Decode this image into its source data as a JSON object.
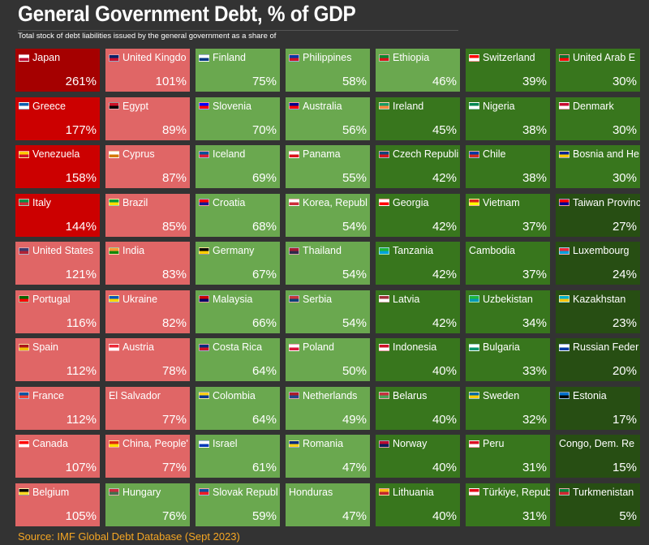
{
  "header": {
    "title": "General Government Debt, % of GDP",
    "subtitle": "Total stock of debt liabilities issued by the general government as a share of"
  },
  "footer": {
    "source": "Source: IMF Global Debt Database (Sept 2023)"
  },
  "colors": {
    "dark_red": "#a50000",
    "red": "#cc0000",
    "light_red": "#e06666",
    "light_green": "#6aa84f",
    "green": "#38761d",
    "dark_green": "#274e13",
    "text_on_dark": "#ffffff",
    "text_on_light": "#000000",
    "source_text": "#f5a623"
  },
  "chart_data": {
    "type": "heatmap",
    "title": "General Government Debt, % of GDP",
    "subtitle": "Total stock of debt liabilities issued by the general government as a share of",
    "unit": "%",
    "columns": [
      [
        {
          "country": "Japan",
          "value": 261,
          "label": "261%",
          "color": "#a50000",
          "flag": [
            "#ffffff",
            "#bc002d"
          ]
        },
        {
          "country": "Greece",
          "value": 177,
          "label": "177%",
          "color": "#cc0000",
          "flag": [
            "#0d5eaf",
            "#ffffff"
          ]
        },
        {
          "country": "Venezuela",
          "value": 158,
          "label": "158%",
          "color": "#cc0000",
          "flag": [
            "#ffcc00",
            "#cf142b"
          ]
        },
        {
          "country": "Italy",
          "value": 144,
          "label": "144%",
          "color": "#cc0000",
          "flag": [
            "#009246",
            "#ce2b37"
          ]
        },
        {
          "country": "United States",
          "value": 121,
          "label": "121%",
          "color": "#e06666",
          "flag": [
            "#3c3b6e",
            "#b22234"
          ]
        },
        {
          "country": "Portugal",
          "value": 116,
          "label": "116%",
          "color": "#e06666",
          "flag": [
            "#006600",
            "#ff0000"
          ]
        },
        {
          "country": "Spain",
          "value": 112,
          "label": "112%",
          "color": "#e06666",
          "flag": [
            "#aa151b",
            "#f1bf00"
          ]
        },
        {
          "country": "France",
          "value": 112,
          "label": "112%",
          "color": "#e06666",
          "flag": [
            "#0055a4",
            "#ef4135"
          ]
        },
        {
          "country": "Canada",
          "value": 107,
          "label": "107%",
          "color": "#e06666",
          "flag": [
            "#ff0000",
            "#ffffff"
          ]
        },
        {
          "country": "Belgium",
          "value": 105,
          "label": "105%",
          "color": "#e06666",
          "flag": [
            "#000000",
            "#fdda24"
          ]
        }
      ],
      [
        {
          "country": "United Kingdo",
          "value": 101,
          "label": "101%",
          "color": "#e06666",
          "flag": [
            "#012169",
            "#c8102e"
          ]
        },
        {
          "country": "Egypt",
          "value": 89,
          "label": "89%",
          "color": "#e06666",
          "flag": [
            "#ce1126",
            "#000000"
          ]
        },
        {
          "country": "Cyprus",
          "value": 87,
          "label": "87%",
          "color": "#e06666",
          "flag": [
            "#ffffff",
            "#d57800"
          ]
        },
        {
          "country": "Brazil",
          "value": 85,
          "label": "85%",
          "color": "#e06666",
          "flag": [
            "#009c3b",
            "#ffdf00"
          ]
        },
        {
          "country": "India",
          "value": 83,
          "label": "83%",
          "color": "#e06666",
          "flag": [
            "#ff9933",
            "#138808"
          ]
        },
        {
          "country": "Ukraine",
          "value": 82,
          "label": "82%",
          "color": "#e06666",
          "flag": [
            "#0057b7",
            "#ffd700"
          ]
        },
        {
          "country": "Austria",
          "value": 78,
          "label": "78%",
          "color": "#e06666",
          "flag": [
            "#ed2939",
            "#ffffff"
          ]
        },
        {
          "country": "El Salvador",
          "value": 77,
          "label": "77%",
          "color": "#e06666",
          "flag": null
        },
        {
          "country": "China, People'",
          "value": 77,
          "label": "77%",
          "color": "#e06666",
          "flag": [
            "#de2910",
            "#ffde00"
          ]
        },
        {
          "country": "Hungary",
          "value": 76,
          "label": "76%",
          "color": "#6aa84f",
          "flag": [
            "#cd2a3e",
            "#436f4d"
          ]
        }
      ],
      [
        {
          "country": "Finland",
          "value": 75,
          "label": "75%",
          "color": "#6aa84f",
          "flag": [
            "#ffffff",
            "#003580"
          ]
        },
        {
          "country": "Slovenia",
          "value": 70,
          "label": "70%",
          "color": "#6aa84f",
          "flag": [
            "#0000ff",
            "#ff0000"
          ]
        },
        {
          "country": "Iceland",
          "value": 69,
          "label": "69%",
          "color": "#6aa84f",
          "flag": [
            "#02529c",
            "#dc1e35"
          ]
        },
        {
          "country": "Croatia",
          "value": 68,
          "label": "68%",
          "color": "#6aa84f",
          "flag": [
            "#ff0000",
            "#171796"
          ]
        },
        {
          "country": "Germany",
          "value": 67,
          "label": "67%",
          "color": "#6aa84f",
          "flag": [
            "#000000",
            "#ffce00"
          ]
        },
        {
          "country": "Malaysia",
          "value": 66,
          "label": "66%",
          "color": "#6aa84f",
          "flag": [
            "#cc0001",
            "#010066"
          ]
        },
        {
          "country": "Costa Rica",
          "value": 64,
          "label": "64%",
          "color": "#6aa84f",
          "flag": [
            "#002b7f",
            "#ce1126"
          ]
        },
        {
          "country": "Colombia",
          "value": 64,
          "label": "64%",
          "color": "#6aa84f",
          "flag": [
            "#fcd116",
            "#003893"
          ]
        },
        {
          "country": "Israel",
          "value": 61,
          "label": "61%",
          "color": "#6aa84f",
          "flag": [
            "#ffffff",
            "#0038b8"
          ]
        },
        {
          "country": "Slovak Republ",
          "value": 59,
          "label": "59%",
          "color": "#6aa84f",
          "flag": [
            "#0b4ea2",
            "#ee1c25"
          ]
        }
      ],
      [
        {
          "country": "Philippines",
          "value": 58,
          "label": "58%",
          "color": "#6aa84f",
          "flag": [
            "#0038a8",
            "#ce1126"
          ]
        },
        {
          "country": "Australia",
          "value": 56,
          "label": "56%",
          "color": "#6aa84f",
          "flag": [
            "#00008b",
            "#ff0000"
          ]
        },
        {
          "country": "Panama",
          "value": 55,
          "label": "55%",
          "color": "#6aa84f",
          "flag": [
            "#ffffff",
            "#da121a"
          ]
        },
        {
          "country": "Korea, Republ",
          "value": 54,
          "label": "54%",
          "color": "#6aa84f",
          "flag": [
            "#ffffff",
            "#cd2e3a"
          ]
        },
        {
          "country": "Thailand",
          "value": 54,
          "label": "54%",
          "color": "#6aa84f",
          "flag": [
            "#a51931",
            "#2d2a4a"
          ]
        },
        {
          "country": "Serbia",
          "value": 54,
          "label": "54%",
          "color": "#6aa84f",
          "flag": [
            "#c6363c",
            "#0c4076"
          ]
        },
        {
          "country": "Poland",
          "value": 50,
          "label": "50%",
          "color": "#6aa84f",
          "flag": [
            "#ffffff",
            "#dc143c"
          ]
        },
        {
          "country": "Netherlands",
          "value": 49,
          "label": "49%",
          "color": "#6aa84f",
          "flag": [
            "#ae1c28",
            "#21468b"
          ]
        },
        {
          "country": "Romania",
          "value": 47,
          "label": "47%",
          "color": "#6aa84f",
          "flag": [
            "#002b7f",
            "#fcd116"
          ]
        },
        {
          "country": "Honduras",
          "value": 47,
          "label": "47%",
          "color": "#6aa84f",
          "flag": null
        }
      ],
      [
        {
          "country": "Ethiopia",
          "value": 46,
          "label": "46%",
          "color": "#6aa84f",
          "flag": [
            "#078930",
            "#da121a"
          ]
        },
        {
          "country": "Ireland",
          "value": 45,
          "label": "45%",
          "color": "#38761d",
          "flag": [
            "#169b62",
            "#ff883e"
          ]
        },
        {
          "country": "Czech Republi",
          "value": 42,
          "label": "42%",
          "color": "#38761d",
          "flag": [
            "#11457e",
            "#d7141a"
          ]
        },
        {
          "country": "Georgia",
          "value": 42,
          "label": "42%",
          "color": "#38761d",
          "flag": [
            "#ffffff",
            "#ff0000"
          ]
        },
        {
          "country": "Tanzania",
          "value": 42,
          "label": "42%",
          "color": "#38761d",
          "flag": [
            "#1eb53a",
            "#00a3dd"
          ]
        },
        {
          "country": "Latvia",
          "value": 42,
          "label": "42%",
          "color": "#38761d",
          "flag": [
            "#9e3039",
            "#ffffff"
          ]
        },
        {
          "country": "Indonesia",
          "value": 40,
          "label": "40%",
          "color": "#38761d",
          "flag": [
            "#ce1126",
            "#ffffff"
          ]
        },
        {
          "country": "Belarus",
          "value": 40,
          "label": "40%",
          "color": "#38761d",
          "flag": [
            "#c8313e",
            "#4aa657"
          ]
        },
        {
          "country": "Norway",
          "value": 40,
          "label": "40%",
          "color": "#38761d",
          "flag": [
            "#ba0c2f",
            "#00205b"
          ]
        },
        {
          "country": "Lithuania",
          "value": 40,
          "label": "40%",
          "color": "#38761d",
          "flag": [
            "#fdb913",
            "#c1272d"
          ]
        }
      ],
      [
        {
          "country": "Switzerland",
          "value": 39,
          "label": "39%",
          "color": "#38761d",
          "flag": [
            "#ff0000",
            "#ffffff"
          ]
        },
        {
          "country": "Nigeria",
          "value": 38,
          "label": "38%",
          "color": "#38761d",
          "flag": [
            "#008751",
            "#ffffff"
          ]
        },
        {
          "country": "Chile",
          "value": 38,
          "label": "38%",
          "color": "#38761d",
          "flag": [
            "#0039a6",
            "#d52b1e"
          ]
        },
        {
          "country": "Vietnam",
          "value": 37,
          "label": "37%",
          "color": "#38761d",
          "flag": [
            "#da251d",
            "#ffff00"
          ]
        },
        {
          "country": "Cambodia",
          "value": 37,
          "label": "37%",
          "color": "#38761d",
          "flag": null
        },
        {
          "country": "Uzbekistan",
          "value": 34,
          "label": "34%",
          "color": "#38761d",
          "flag": [
            "#1eb53a",
            "#0099b5"
          ]
        },
        {
          "country": "Bulgaria",
          "value": 33,
          "label": "33%",
          "color": "#38761d",
          "flag": [
            "#ffffff",
            "#00966e"
          ]
        },
        {
          "country": "Sweden",
          "value": 32,
          "label": "32%",
          "color": "#38761d",
          "flag": [
            "#006aa7",
            "#fecc00"
          ]
        },
        {
          "country": "Peru",
          "value": 31,
          "label": "31%",
          "color": "#38761d",
          "flag": [
            "#d91023",
            "#ffffff"
          ]
        },
        {
          "country": "Türkiye, Repub",
          "value": 31,
          "label": "31%",
          "color": "#38761d",
          "flag": [
            "#e30a17",
            "#ffffff"
          ]
        }
      ],
      [
        {
          "country": "United Arab E",
          "value": 30,
          "label": "30%",
          "color": "#38761d",
          "flag": [
            "#00732f",
            "#ff0000"
          ]
        },
        {
          "country": "Denmark",
          "value": 30,
          "label": "30%",
          "color": "#38761d",
          "flag": [
            "#c60c30",
            "#ffffff"
          ]
        },
        {
          "country": "Bosnia and He",
          "value": 30,
          "label": "30%",
          "color": "#38761d",
          "flag": [
            "#002395",
            "#fecb00"
          ]
        },
        {
          "country": "Taiwan Provinc",
          "value": 27,
          "label": "27%",
          "color": "#274e13",
          "flag": [
            "#fe0000",
            "#000095"
          ]
        },
        {
          "country": "Luxembourg",
          "value": 24,
          "label": "24%",
          "color": "#274e13",
          "flag": [
            "#ed2939",
            "#00a1de"
          ]
        },
        {
          "country": "Kazakhstan",
          "value": 23,
          "label": "23%",
          "color": "#274e13",
          "flag": [
            "#00afca",
            "#fec50c"
          ]
        },
        {
          "country": "Russian Feder",
          "value": 20,
          "label": "20%",
          "color": "#274e13",
          "flag": [
            "#ffffff",
            "#0039a6"
          ]
        },
        {
          "country": "Estonia",
          "value": 17,
          "label": "17%",
          "color": "#274e13",
          "flag": [
            "#0072ce",
            "#000000"
          ]
        },
        {
          "country": "Congo, Dem. Re",
          "value": 15,
          "label": "15%",
          "color": "#274e13",
          "flag": null
        },
        {
          "country": "Turkmenistan",
          "value": 5,
          "label": "5%",
          "color": "#274e13",
          "flag": [
            "#00843d",
            "#d22630"
          ]
        }
      ]
    ]
  }
}
